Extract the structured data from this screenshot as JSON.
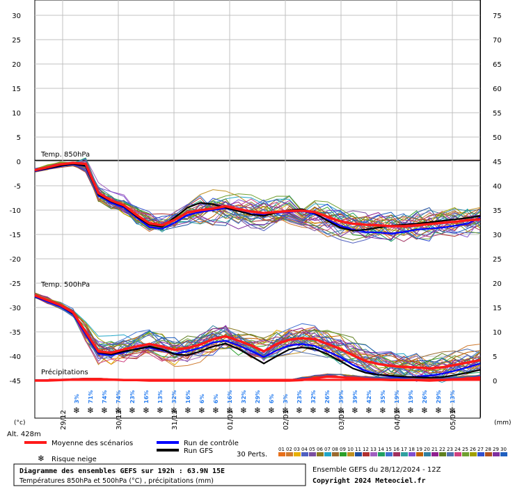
{
  "chart_data": {
    "type": "line",
    "panels": [
      "Temp. 850hPa",
      "Temp. 500hPa",
      "Précipitations"
    ],
    "y_left_ticks": [
      "30",
      "25",
      "20",
      "15",
      "10",
      "5",
      "0",
      "-5",
      "-10",
      "-15",
      "-20",
      "-25",
      "-30",
      "-35",
      "-40",
      "-45"
    ],
    "y_right_ticks": [
      "75",
      "70",
      "65",
      "60",
      "55",
      "50",
      "45",
      "40",
      "35",
      "30",
      "25",
      "20",
      "15",
      "10",
      "5",
      "0"
    ],
    "left_unit": "(°c)",
    "right_unit": "(mm)",
    "x_labels": [
      "29/12",
      "30/12",
      "31/12",
      "01/01",
      "02/01",
      "03/01",
      "04/01",
      "05/01"
    ],
    "snow_risk_pct": [
      "3%",
      "71%",
      "74%",
      "74%",
      "23%",
      "16%",
      "13%",
      "32%",
      "16%",
      "6%",
      "6%",
      "16%",
      "32%",
      "29%",
      "6%",
      "3%",
      "23%",
      "32%",
      "26%",
      "39%",
      "39%",
      "42%",
      "35%",
      "19%",
      "19%",
      "26%",
      "29%",
      "13%"
    ],
    "series": [
      {
        "name": "Moyenne des scénarios",
        "color": "#ff1a1a",
        "t850": [
          -1.8,
          -1.2,
          -0.6,
          -0.3,
          -0.5,
          -6.5,
          -8.0,
          -9.0,
          -11.0,
          -12.7,
          -13.1,
          -12.0,
          -10.5,
          -10.0,
          -9.7,
          -9.2,
          -9.8,
          -10.3,
          -10.6,
          -10.4,
          -10.2,
          -10.1,
          -10.4,
          -11.4,
          -12.3,
          -12.8,
          -13.0,
          -13.1,
          -13.3,
          -13.3,
          -13.1,
          -12.9,
          -12.6,
          -12.4,
          -12.1,
          -11.9
        ],
        "t500": [
          -27.5,
          -28.5,
          -29.5,
          -31.0,
          -35.0,
          -39.0,
          -39.3,
          -38.6,
          -38.0,
          -37.5,
          -38.0,
          -38.7,
          -38.3,
          -37.6,
          -36.5,
          -35.9,
          -36.8,
          -37.8,
          -39.0,
          -37.5,
          -36.6,
          -36.3,
          -36.5,
          -37.5,
          -38.5,
          -39.8,
          -41.0,
          -41.6,
          -42.0,
          -42.2,
          -42.3,
          -42.5,
          -42.3,
          -41.8,
          -41.3,
          -40.8
        ],
        "precip": [
          0.0,
          0.0,
          0.1,
          0.2,
          0.3,
          0.3,
          0.2,
          0.1,
          0.1,
          0.0,
          0.0,
          0.0,
          0.0,
          0.0,
          0.0,
          0.0,
          0.0,
          0.0,
          0.0,
          0.0,
          0.0,
          0.1,
          0.5,
          0.8,
          0.7,
          0.5,
          0.3,
          0.2,
          0.1,
          0.1,
          0.1,
          0.0,
          0.1,
          0.2,
          0.4,
          0.6
        ]
      },
      {
        "name": "Run de contrôle",
        "color": "#0000ff",
        "t850": [
          -2.0,
          -1.5,
          -1.0,
          -0.6,
          -1.0,
          -7.0,
          -8.5,
          -9.5,
          -11.5,
          -13.5,
          -13.8,
          -12.6,
          -11.0,
          -10.4,
          -10.0,
          -9.6,
          -10.2,
          -10.8,
          -11.0,
          -10.6,
          -10.4,
          -10.2,
          -10.8,
          -12.0,
          -13.2,
          -14.0,
          -14.5,
          -14.6,
          -14.8,
          -14.5,
          -14.0,
          -13.8,
          -13.6,
          -13.2,
          -12.8,
          -11.5
        ],
        "t500": [
          -27.8,
          -28.8,
          -29.8,
          -31.4,
          -35.5,
          -39.5,
          -39.8,
          -39.2,
          -38.5,
          -38.2,
          -38.8,
          -39.5,
          -39.0,
          -38.3,
          -37.2,
          -36.8,
          -37.8,
          -38.9,
          -40.2,
          -38.8,
          -37.8,
          -37.5,
          -37.9,
          -39.0,
          -40.2,
          -41.8,
          -43.0,
          -43.8,
          -44.2,
          -44.3,
          -44.2,
          -44.0,
          -43.6,
          -43.0,
          -42.3,
          -41.5
        ]
      },
      {
        "name": "Run GFS",
        "color": "#000000",
        "t850": [
          -1.9,
          -1.4,
          -0.9,
          -0.5,
          -0.9,
          -6.8,
          -8.2,
          -9.2,
          -11.3,
          -13.0,
          -13.4,
          -11.5,
          -9.5,
          -8.5,
          -8.8,
          -9.5,
          -10.2,
          -10.9,
          -11.2,
          -10.5,
          -10.0,
          -9.8,
          -10.6,
          -12.2,
          -13.6,
          -14.2,
          -14.0,
          -13.6,
          -13.2,
          -13.0,
          -12.8,
          -12.5,
          -12.2,
          -11.9,
          -11.6,
          -11.2
        ],
        "t500": [
          -27.6,
          -28.6,
          -29.6,
          -31.2,
          -35.2,
          -39.2,
          -39.6,
          -39.0,
          -38.6,
          -38.0,
          -38.6,
          -39.6,
          -39.8,
          -39.0,
          -38.0,
          -37.4,
          -38.5,
          -40.0,
          -41.5,
          -40.0,
          -38.6,
          -38.2,
          -38.5,
          -39.6,
          -41.0,
          -42.5,
          -43.4,
          -43.8,
          -44.0,
          -44.2,
          -44.3,
          -44.4,
          -44.3,
          -43.9,
          -43.4,
          -42.8
        ]
      }
    ],
    "legend": [
      "Moyenne des scénarios",
      "Run de contrôle",
      "Run GFS",
      "Risque neige",
      "30 Perts."
    ],
    "perturbations": {
      "labels": [
        "01",
        "02",
        "03",
        "04",
        "05",
        "06",
        "07",
        "08",
        "09",
        "10",
        "11",
        "12",
        "13",
        "14",
        "15",
        "16",
        "17",
        "18",
        "19",
        "20",
        "21",
        "22",
        "23",
        "24",
        "25",
        "26",
        "27",
        "28",
        "29",
        "30"
      ],
      "colors": [
        "#e8701a",
        "#cf7a2f",
        "#e8b000",
        "#5060c0",
        "#7a4fa0",
        "#8a7a20",
        "#1fa6c8",
        "#9a6a30",
        "#2aa02a",
        "#c09020",
        "#2050a0",
        "#b03030",
        "#a060c0",
        "#20a060",
        "#4070d0",
        "#a03060",
        "#30a0a0",
        "#8050d0",
        "#c06000",
        "#3080a0",
        "#902090",
        "#608020",
        "#5070b0",
        "#d04080",
        "#70a030",
        "#a0a000",
        "#3050d0",
        "#b05020",
        "#8030a0",
        "#2060c0"
      ]
    }
  },
  "altitude": "Alt. 428m",
  "title_box": {
    "line1": "Diagramme des ensembles GEFS sur 192h : 63.9N 15E",
    "line2": "Températures 850hPa et 500hPa (°C) , précipitations (mm)"
  },
  "footer": {
    "run": "Ensemble GEFS du 28/12/2024 - 12Z",
    "copyright": "Copyright 2024 Meteociel.fr"
  }
}
